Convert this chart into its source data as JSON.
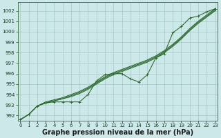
{
  "x": [
    0,
    1,
    2,
    3,
    4,
    5,
    6,
    7,
    8,
    9,
    10,
    11,
    12,
    13,
    14,
    15,
    16,
    17,
    18,
    19,
    20,
    21,
    22,
    23
  ],
  "smooth_series": [
    [
      991.6,
      992.1,
      992.9,
      993.2,
      993.4,
      993.6,
      993.8,
      994.1,
      994.5,
      995.0,
      995.5,
      995.9,
      996.2,
      996.5,
      996.8,
      997.1,
      997.5,
      998.0,
      998.6,
      999.3,
      1000.1,
      1000.8,
      1001.4,
      1002.0
    ],
    [
      991.6,
      992.1,
      992.9,
      993.2,
      993.4,
      993.6,
      993.9,
      994.2,
      994.6,
      995.1,
      995.6,
      996.0,
      996.3,
      996.6,
      996.9,
      997.2,
      997.6,
      998.1,
      998.7,
      999.4,
      1000.2,
      1000.9,
      1001.5,
      1002.1
    ],
    [
      991.6,
      992.1,
      992.9,
      993.3,
      993.5,
      993.7,
      994.0,
      994.3,
      994.7,
      995.2,
      995.7,
      996.1,
      996.4,
      996.7,
      997.0,
      997.3,
      997.7,
      998.2,
      998.8,
      999.5,
      1000.3,
      1001.0,
      1001.6,
      1002.2
    ]
  ],
  "marker_x": [
    0,
    1,
    2,
    3,
    4,
    5,
    6,
    7,
    8,
    9,
    10,
    11,
    12,
    13,
    14,
    15,
    16,
    17,
    18,
    19,
    20,
    21,
    22,
    23
  ],
  "marker_y": [
    991.6,
    992.1,
    992.9,
    993.2,
    993.3,
    993.3,
    993.3,
    993.3,
    994.0,
    995.3,
    995.9,
    996.0,
    996.0,
    995.5,
    995.2,
    995.9,
    997.5,
    997.9,
    999.9,
    1000.5,
    1001.3,
    1001.5,
    1001.9,
    1002.2
  ],
  "line_color": "#2d6b2d",
  "marker_color": "#2d6b2d",
  "bg_color": "#cce8e8",
  "grid_color": "#9dbfbf",
  "xlabel": "Graphe pression niveau de la mer (hPa)",
  "ylim": [
    991.5,
    1002.8
  ],
  "xlim": [
    -0.3,
    23.3
  ],
  "yticks": [
    992,
    993,
    994,
    995,
    996,
    997,
    998,
    999,
    1000,
    1001,
    1002
  ],
  "xticks": [
    0,
    1,
    2,
    3,
    4,
    5,
    6,
    7,
    8,
    9,
    10,
    11,
    12,
    13,
    14,
    15,
    16,
    17,
    18,
    19,
    20,
    21,
    22,
    23
  ],
  "tick_fontsize": 5.0,
  "xlabel_fontsize": 7.0,
  "line_width": 0.8,
  "marker_size": 3.5
}
